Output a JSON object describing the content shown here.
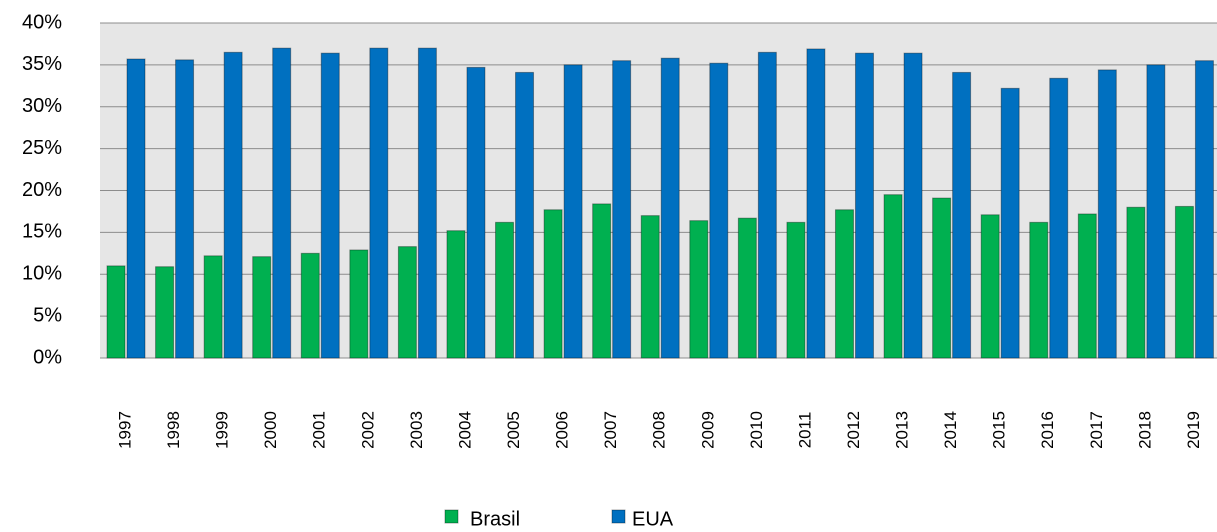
{
  "chart_data": {
    "type": "bar",
    "categories": [
      "1997",
      "1998",
      "1999",
      "2000",
      "2001",
      "2002",
      "2003",
      "2004",
      "2005",
      "2006",
      "2007",
      "2008",
      "2009",
      "2010",
      "2011",
      "2012",
      "2013",
      "2014",
      "2015",
      "2016",
      "2017",
      "2018",
      "2019"
    ],
    "series": [
      {
        "name": "Brasil",
        "color": "#00b050",
        "values": [
          11.0,
          10.9,
          12.2,
          12.1,
          12.5,
          12.9,
          13.3,
          15.2,
          16.2,
          17.7,
          18.4,
          17.0,
          16.4,
          16.7,
          16.2,
          17.7,
          19.5,
          19.1,
          17.1,
          16.2,
          17.2,
          18.0,
          18.1
        ]
      },
      {
        "name": "EUA",
        "color": "#0070c0",
        "values": [
          35.7,
          35.6,
          36.5,
          37.0,
          36.4,
          37.0,
          37.0,
          34.7,
          34.1,
          35.0,
          35.5,
          35.8,
          35.2,
          36.5,
          36.9,
          36.4,
          36.4,
          34.1,
          32.2,
          33.4,
          34.4,
          35.0,
          35.5
        ]
      }
    ],
    "ylim": [
      0,
      40
    ],
    "yticks": [
      {
        "value": 0,
        "label": "0%"
      },
      {
        "value": 5,
        "label": "5%"
      },
      {
        "value": 10,
        "label": "10%"
      },
      {
        "value": 15,
        "label": "15%"
      },
      {
        "value": 20,
        "label": "20%"
      },
      {
        "value": 25,
        "label": "25%"
      },
      {
        "value": 30,
        "label": "30%"
      },
      {
        "value": 35,
        "label": "35%"
      },
      {
        "value": 40,
        "label": "40%"
      }
    ],
    "grid": true,
    "legend": "bottom"
  }
}
